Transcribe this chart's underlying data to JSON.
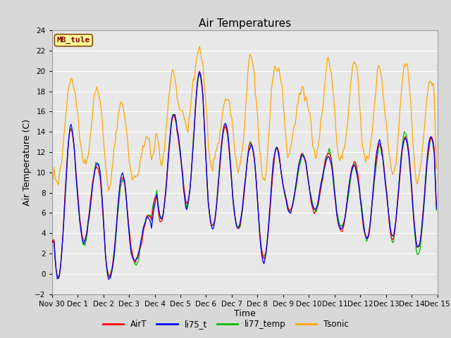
{
  "title": "Air Temperatures",
  "ylabel": "Air Temperature (C)",
  "xlabel": "Time",
  "ylim": [
    -2,
    24
  ],
  "site_label": "MB_tule",
  "colors": {
    "AirT": "#FF0000",
    "li75_t": "#0000FF",
    "li77_temp": "#00BB00",
    "Tsonic": "#FFA500"
  },
  "legend_labels": [
    "AirT",
    "li75_t",
    "li77_temp",
    "Tsonic"
  ],
  "xtick_labels": [
    "Nov 30",
    "Dec 1",
    "Dec 2",
    "Dec 3",
    "Dec 4",
    "Dec 5",
    "Dec 6",
    "Dec 7",
    "Dec 8",
    "Dec 9",
    "Dec 10",
    "Dec 11",
    "Dec 12",
    "Dec 13",
    "Dec 14",
    "Dec 15"
  ],
  "background_color": "#D8D8D8",
  "plot_bg_color": "#E8E8E8",
  "grid_color": "#FFFFFF",
  "title_fontsize": 11,
  "axis_label_fontsize": 9,
  "tick_fontsize": 7.5,
  "day_mins_base": [
    -1,
    3,
    -1,
    1,
    5,
    6,
    4,
    4,
    1,
    6,
    6,
    4,
    3,
    3,
    2,
    2
  ],
  "day_maxs_base": [
    15,
    11,
    10,
    6,
    16,
    20,
    15,
    13,
    13,
    12,
    12,
    11,
    13,
    14,
    14,
    14
  ],
  "tsonic_mins": [
    8,
    11,
    9,
    9,
    11,
    14,
    11,
    10,
    9,
    12,
    12,
    11,
    10,
    10,
    9,
    11
  ],
  "tsonic_maxs": [
    20,
    18,
    17,
    14,
    21,
    22,
    17,
    21,
    21,
    20,
    21,
    21,
    20,
    20,
    20,
    20
  ]
}
